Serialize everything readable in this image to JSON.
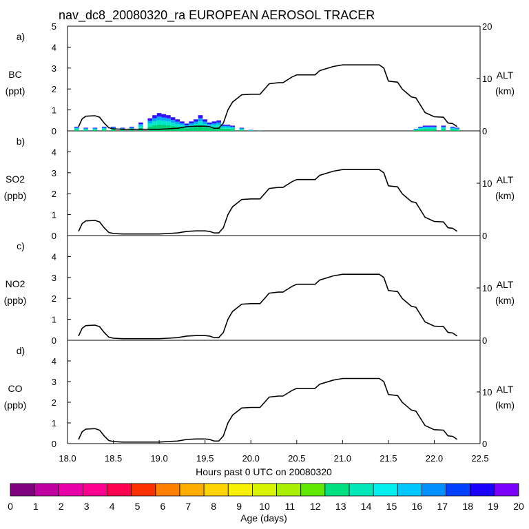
{
  "title": "nav_dc8_20080320_ra EUROPEAN AEROSOL TRACER",
  "xlabel": "Hours past 0 UTC on 20080320",
  "colorbar_label": "Age (days)",
  "colorbar_ticks": [
    "0",
    "1",
    "2",
    "3",
    "4",
    "5",
    "6",
    "7",
    "8",
    "9",
    "10",
    "11",
    "12",
    "13",
    "14",
    "15",
    "16",
    "17",
    "18",
    "19",
    "20"
  ],
  "colorbar_colors": [
    "#7f007f",
    "#bf00a0",
    "#ea00a8",
    "#ff0090",
    "#ff0050",
    "#ff3000",
    "#ff8000",
    "#ffae00",
    "#ffd400",
    "#f7f000",
    "#d8f400",
    "#a8f000",
    "#60e800",
    "#00e080",
    "#00e8b8",
    "#00f0f0",
    "#00c8ff",
    "#0090ff",
    "#0040ff",
    "#1a00ff",
    "#7a00ff"
  ],
  "chart_data": [
    {
      "panel": "a)",
      "type": "area",
      "species": "BC",
      "unit": "(ppt)",
      "ylim": [
        0,
        5
      ],
      "yticks": [
        "0",
        "1",
        "2",
        "3",
        "4",
        "5"
      ],
      "y2label": "ALT",
      "y2unit": "(km)",
      "y2lim": [
        0,
        20
      ],
      "y2ticks": [
        "0",
        "10",
        "20"
      ],
      "xlim": [
        18.0,
        22.5
      ],
      "xticks": [
        "18.0",
        "18.5",
        "19.0",
        "19.5",
        "20.0",
        "20.5",
        "21.0",
        "21.5",
        "22.0",
        "22.5"
      ],
      "bc_x": [
        18.1,
        18.2,
        18.3,
        18.4,
        18.5,
        18.6,
        18.7,
        18.8,
        18.9,
        18.95,
        19.0,
        19.05,
        19.1,
        19.15,
        19.2,
        19.25,
        19.3,
        19.35,
        19.4,
        19.45,
        19.5,
        19.55,
        19.6,
        19.65,
        19.7,
        19.75,
        19.8,
        19.9,
        20.0,
        20.1,
        21.8,
        21.85,
        21.9,
        21.95,
        22.0,
        22.1,
        22.2,
        22.25
      ],
      "bc_total": [
        0.2,
        0.15,
        0.15,
        0.2,
        0.2,
        0.15,
        0.2,
        0.4,
        0.6,
        0.75,
        0.85,
        0.8,
        0.75,
        0.65,
        0.55,
        0.45,
        0.35,
        0.45,
        0.55,
        0.75,
        0.55,
        0.4,
        0.45,
        0.5,
        0.3,
        0.3,
        0.25,
        0.15,
        0.05,
        0.02,
        0.1,
        0.2,
        0.25,
        0.25,
        0.25,
        0.25,
        0.2,
        0.15
      ],
      "alt_x": [
        18.12,
        18.16,
        18.2,
        18.3,
        18.35,
        18.4,
        18.45,
        18.5,
        18.6,
        18.7,
        18.8,
        18.9,
        19.0,
        19.1,
        19.2,
        19.3,
        19.4,
        19.5,
        19.55,
        19.6,
        19.65,
        19.7,
        19.75,
        19.8,
        19.85,
        19.9,
        20.0,
        20.1,
        20.15,
        20.2,
        20.3,
        20.35,
        20.45,
        20.5,
        20.7,
        20.75,
        20.9,
        21.0,
        21.4,
        21.45,
        21.5,
        21.6,
        21.65,
        21.75,
        21.8,
        21.9,
        22.0,
        22.1,
        22.15,
        22.2,
        22.25
      ],
      "alt_km": [
        0.8,
        2.3,
        2.8,
        2.9,
        2.6,
        1.5,
        0.6,
        0.4,
        0.3,
        0.3,
        0.3,
        0.3,
        0.3,
        0.4,
        0.5,
        0.8,
        0.9,
        0.9,
        0.8,
        0.5,
        0.5,
        1.5,
        4.0,
        5.5,
        6.2,
        6.9,
        7.0,
        7.0,
        8.0,
        9.0,
        9.2,
        9.2,
        10.3,
        10.7,
        10.7,
        11.5,
        12.3,
        12.6,
        12.6,
        12.0,
        9.5,
        9.3,
        8.0,
        6.5,
        6.3,
        3.5,
        2.7,
        2.6,
        1.5,
        1.4,
        0.8
      ]
    },
    {
      "panel": "b)",
      "type": "line",
      "species": "SO2",
      "unit": "(ppb)",
      "ylim": [
        0,
        5
      ],
      "yticks": [
        "0",
        "1",
        "2",
        "3",
        "4"
      ],
      "y2label": "ALT",
      "y2unit": "(km)",
      "y2lim": [
        0,
        20
      ],
      "y2ticks": [
        "0",
        "10"
      ]
    },
    {
      "panel": "c)",
      "type": "line",
      "species": "NO2",
      "unit": "(ppb)",
      "ylim": [
        0,
        5
      ],
      "yticks": [
        "0",
        "1",
        "2",
        "3",
        "4"
      ],
      "y2label": "ALT",
      "y2unit": "(km)",
      "y2lim": [
        0,
        20
      ],
      "y2ticks": [
        "0",
        "10"
      ]
    },
    {
      "panel": "d)",
      "type": "line",
      "species": "CO",
      "unit": "(ppb)",
      "ylim": [
        0,
        5
      ],
      "yticks": [
        "0",
        "1",
        "2",
        "3",
        "4"
      ],
      "y2label": "ALT",
      "y2unit": "(km)",
      "y2lim": [
        0,
        20
      ],
      "y2ticks": [
        "0",
        "10"
      ]
    }
  ]
}
